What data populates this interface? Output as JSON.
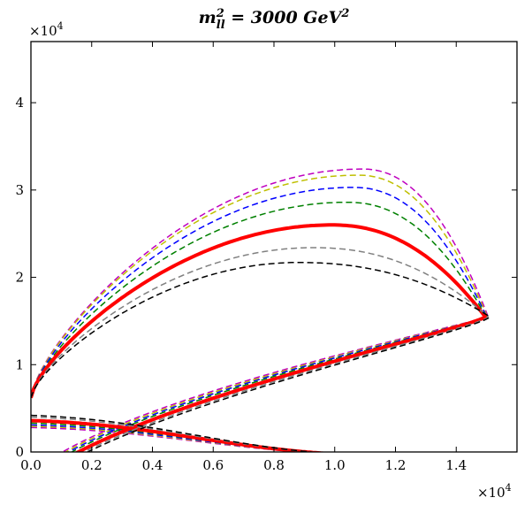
{
  "chart_data": {
    "type": "line",
    "title": "m²ₗₗ = 3000 GeV²",
    "title_parts": {
      "base": "m",
      "sup": "2",
      "sub": "ll",
      "rest": " = 3000 ",
      "unit": "GeV",
      "unit_sup": "2"
    },
    "xlabel": "",
    "ylabel": "",
    "x_multiplier": "×10",
    "x_multiplier_exp": "4",
    "y_multiplier": "×10",
    "y_multiplier_exp": "4",
    "xlim": [
      0,
      16000
    ],
    "ylim": [
      0,
      47000
    ],
    "xticks": [
      0,
      2000,
      4000,
      6000,
      8000,
      10000,
      12000,
      14000
    ],
    "xtick_labels": [
      "0.0",
      "0.2",
      "0.4",
      "0.6",
      "0.8",
      "1.0",
      "1.2",
      "1.4"
    ],
    "yticks": [
      0,
      10000,
      20000,
      30000,
      40000
    ],
    "ytick_labels": [
      "0",
      "1",
      "2",
      "3",
      "4"
    ],
    "grid": false,
    "series": [
      {
        "name": "magenta",
        "color": "#bf00bf",
        "style": "dashed",
        "width": 1.5,
        "xmax": 15050,
        "ymax": 32400,
        "ymin": -500,
        "tmax": 10900,
        "bot": 3100,
        "bottop": 0.05
      },
      {
        "name": "yellow",
        "color": "#bfbf00",
        "style": "dashed",
        "width": 1.5,
        "xmax": 15020,
        "ymax": 31700,
        "ymin": -700,
        "tmax": 10750,
        "bot": 3250,
        "bottop": 0.05
      },
      {
        "name": "blue",
        "color": "#0000ff",
        "style": "dashed",
        "width": 1.5,
        "xmax": 15000,
        "ymax": 30300,
        "ymin": -900,
        "tmax": 10600,
        "bot": 3400,
        "bottop": 0.05
      },
      {
        "name": "green",
        "color": "#008000",
        "style": "dashed",
        "width": 1.5,
        "xmax": 14980,
        "ymax": 28600,
        "ymin": -1100,
        "tmax": 10400,
        "bot": 3600,
        "bottop": 0.05
      },
      {
        "name": "red",
        "color": "#ff0000",
        "style": "solid",
        "width": 4,
        "xmax": 14950,
        "ymax": 26000,
        "ymin": -1500,
        "tmax": 9900,
        "bot": 3900,
        "bottop": 0.05
      },
      {
        "name": "gray",
        "color": "#808080",
        "style": "dashed",
        "width": 1.5,
        "xmax": 15050,
        "ymax": 23400,
        "ymin": -1800,
        "tmax": 9300,
        "bot": 4300,
        "bottop": 0.05
      },
      {
        "name": "black",
        "color": "#000000",
        "style": "dashed",
        "width": 1.5,
        "xmax": 15100,
        "ymax": 21700,
        "ymin": -2000,
        "tmax": 8800,
        "bot": 4500,
        "bottop": 0.05
      }
    ]
  }
}
